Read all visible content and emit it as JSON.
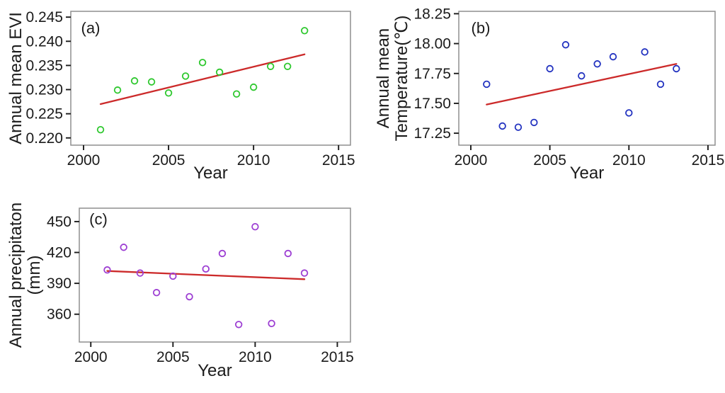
{
  "figure": {
    "background": "#ffffff",
    "colors": {
      "trend_line": "#cc2a2a",
      "plot_border": "#8f8f8f",
      "tick": "#1b1b1b",
      "axis_text": "#1b1b1b",
      "evi_points": "#2ec82e",
      "temperature_points": "#2333c0",
      "precipitation_points": "#9d3fd3"
    }
  },
  "chart_data": [
    {
      "type": "scatter",
      "panel_label": "(a)",
      "ylabel_lines": [
        "Annual mean EVI"
      ],
      "xlabel": "Year",
      "x": [
        2001,
        2002,
        2003,
        2004,
        2005,
        2006,
        2007,
        2008,
        2009,
        2010,
        2011,
        2012,
        2013
      ],
      "y": [
        0.2217,
        0.2299,
        0.2318,
        0.2316,
        0.2293,
        0.2328,
        0.2356,
        0.2336,
        0.2291,
        0.2305,
        0.2348,
        0.2348,
        0.2422
      ],
      "point_color": "#2ec82e",
      "trendline": {
        "x": [
          2001,
          2013
        ],
        "y": [
          0.227,
          0.2373
        ]
      },
      "xlim": [
        1999.25,
        2015.7
      ],
      "ylim": [
        0.2185,
        0.2462
      ],
      "xticks": [
        2000,
        2005,
        2010,
        2015
      ],
      "xtick_labels": [
        "2000",
        "2005",
        "2010",
        "2015"
      ],
      "yticks": [
        0.22,
        0.225,
        0.23,
        0.235,
        0.24,
        0.245
      ],
      "ytick_labels": [
        "0.220",
        "0.225",
        "0.230",
        "0.235",
        "0.240",
        "0.245"
      ],
      "grid": false,
      "legend": "none"
    },
    {
      "type": "scatter",
      "panel_label": "(b)",
      "ylabel_lines": [
        "Annual mean",
        "Temperature(℃)"
      ],
      "xlabel": "Year",
      "x": [
        2001,
        2002,
        2003,
        2004,
        2005,
        2006,
        2007,
        2008,
        2009,
        2010,
        2011,
        2012,
        2013
      ],
      "y": [
        17.66,
        17.31,
        17.3,
        17.34,
        17.79,
        17.99,
        17.73,
        17.83,
        17.89,
        17.42,
        17.93,
        17.66,
        17.79
      ],
      "point_color": "#2333c0",
      "trendline": {
        "x": [
          2001,
          2013
        ],
        "y": [
          17.49,
          17.83
        ]
      },
      "xlim": [
        1999.24,
        2015.45
      ],
      "ylim": [
        17.15,
        18.27
      ],
      "xticks": [
        2000,
        2005,
        2010,
        2015
      ],
      "xtick_labels": [
        "2000",
        "2005",
        "2010",
        "2015"
      ],
      "yticks": [
        17.25,
        17.5,
        17.75,
        18.0,
        18.25
      ],
      "ytick_labels": [
        "17.25",
        "17.50",
        "17.75",
        "18.00",
        "18.25"
      ],
      "grid": false,
      "legend": "none"
    },
    {
      "type": "scatter",
      "panel_label": "(c)",
      "ylabel_lines": [
        "Annual precipitaton",
        "(mm)"
      ],
      "xlabel": "Year",
      "x": [
        2001,
        2002,
        2003,
        2004,
        2005,
        2006,
        2007,
        2008,
        2009,
        2010,
        2011,
        2012,
        2013
      ],
      "y": [
        403,
        425,
        400,
        381,
        397,
        377,
        404,
        419,
        350,
        445,
        351,
        419,
        400
      ],
      "point_color": "#9d3fd3",
      "trendline": {
        "x": [
          2001,
          2013
        ],
        "y": [
          402,
          394
        ]
      },
      "xlim": [
        1999.3,
        2015.8
      ],
      "ylim": [
        333,
        463
      ],
      "xticks": [
        2000,
        2005,
        2010,
        2015
      ],
      "xtick_labels": [
        "2000",
        "2005",
        "2010",
        "2015"
      ],
      "yticks": [
        360,
        390,
        420,
        450
      ],
      "ytick_labels": [
        "360",
        "390",
        "420",
        "450"
      ],
      "grid": false,
      "legend": "none"
    }
  ]
}
